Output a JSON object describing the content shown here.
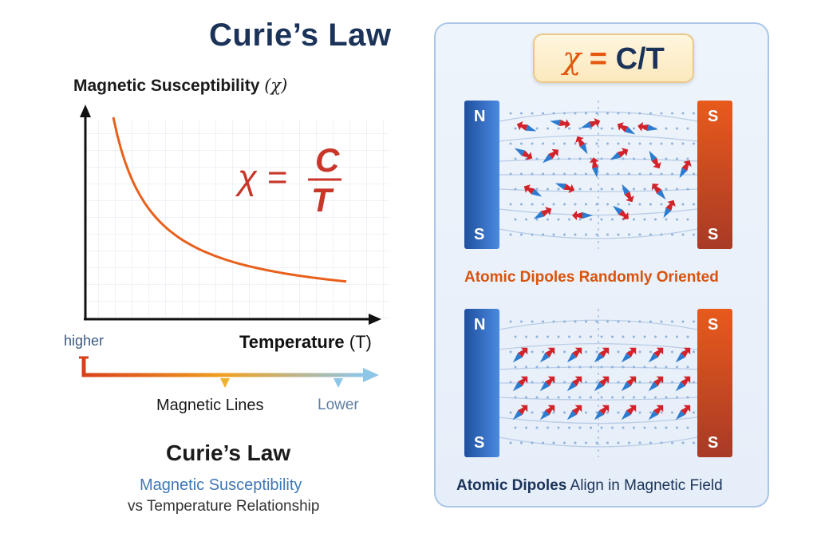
{
  "title": "Curie’s Law",
  "graph": {
    "y_axis_label": "Magnetic Susceptibility",
    "y_axis_symbol": "(χ)",
    "x_axis_label": "Temperature",
    "x_axis_symbol": "(T)",
    "formula_lhs": "χ =",
    "formula_num": "C",
    "formula_den": "T",
    "curve_color": "#e8601c"
  },
  "scale_bar": {
    "left_label": "higher",
    "middle_label": "Magnetic Lines",
    "right_label": "Lower",
    "colors": [
      "#d9401a",
      "#f0a020",
      "#8ec6e8"
    ]
  },
  "subtitle": {
    "heading": "Curie’s Law",
    "line1": "Magnetic Susceptibility",
    "line2": "vs Temperature Relationship"
  },
  "panel": {
    "formula_x": "χ",
    "formula_eq": " = ",
    "formula_rest": "C/T",
    "top_magnet": {
      "left_top": "N",
      "left_bottom": "S",
      "right_top": "S",
      "right_bottom": "S"
    },
    "bottom_magnet": {
      "left_top": "N",
      "left_bottom": "S",
      "right_top": "S",
      "right_bottom": "S"
    },
    "caption1": "Atomic Dipoles Randomly Oriented",
    "caption2_bold": "Atomic Dipoles",
    "caption2_rest": " Align in Magnetic Field",
    "colors": {
      "north": "#2f6fc4",
      "south": "#d24a1e",
      "arrow_red": "#d3232a",
      "arrow_blue": "#2b7bd0"
    }
  }
}
